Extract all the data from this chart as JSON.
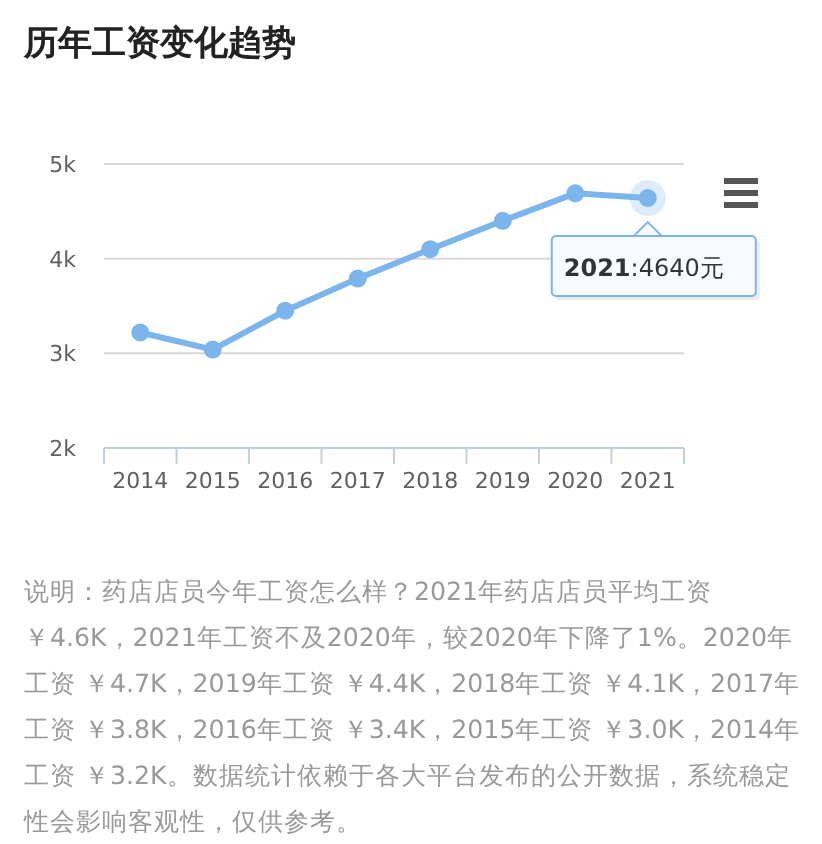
{
  "chart_data": {
    "type": "line",
    "title": "历年工资变化趋势",
    "categories": [
      "2014",
      "2015",
      "2016",
      "2017",
      "2018",
      "2019",
      "2020",
      "2021"
    ],
    "series": [
      {
        "color": "#7cb5ec",
        "values": [
          3220,
          3040,
          3450,
          3790,
          4100,
          4400,
          4690,
          4640
        ]
      }
    ],
    "ylim": [
      2000,
      5000
    ],
    "yticks": [
      {
        "value": 2000,
        "label": "2k"
      },
      {
        "value": 3000,
        "label": "3k"
      },
      {
        "value": 4000,
        "label": "4k"
      },
      {
        "value": 5000,
        "label": "5k"
      }
    ],
    "grid": "y",
    "marker": "circle",
    "line_style": "solid",
    "annotations": [
      {
        "text": "2021:4640元",
        "x": "2021",
        "y": 4640
      },
      "说明：药店店员今年工资怎么样？2021年药店店员平均工资￥4.6K，2021年工资不及2020年，较2020年下降了1%。2020年工资 ￥4.7K，2019年工资 ￥4.4K，2018年工资 ￥4.1K，2017年工资 ￥3.8K，2016年工资 ￥3.4K，2015年工资 ￥3.0K，2014年工资 ￥3.2K。数据统计依赖于各大平台发布的公开数据，系统稳定性会影响客观性，仅供参考。"
    ]
  }
}
